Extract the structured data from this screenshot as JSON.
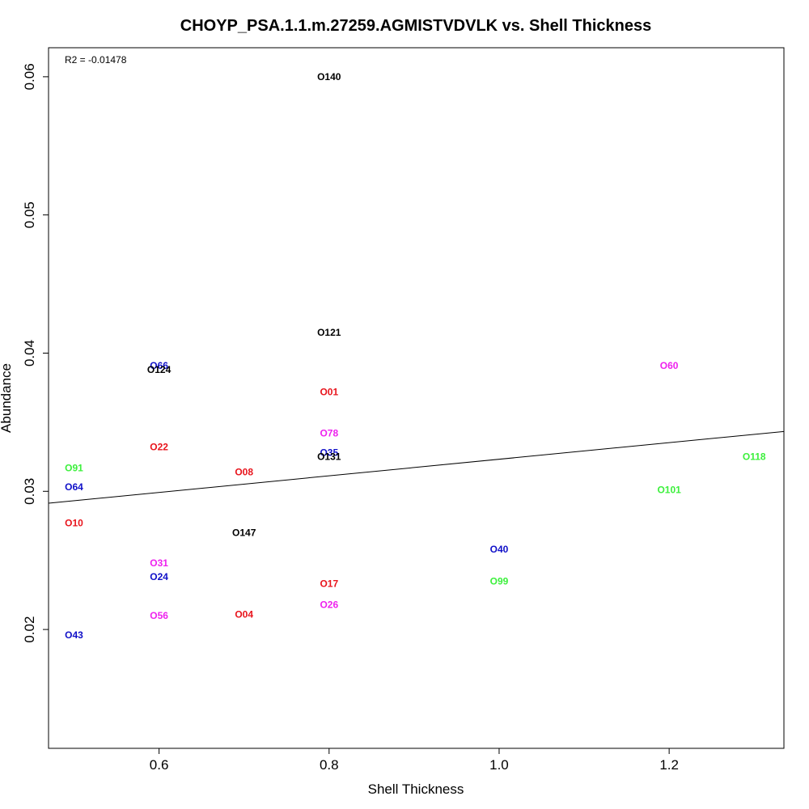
{
  "chart_data": {
    "type": "scatter",
    "title": "CHOYP_PSA.1.1.m.27259.AGMISTVDVLK vs. Shell Thickness",
    "xlabel": "Shell Thickness",
    "ylabel": "Abundance",
    "annotation": "R2 = -0.01478",
    "xlim": [
      0.47,
      1.335
    ],
    "ylim": [
      0.0114,
      0.0621
    ],
    "xticks": [
      "0.6",
      "0.8",
      "1.0",
      "1.2"
    ],
    "yticks": [
      "0.02",
      "0.03",
      "0.04",
      "0.05",
      "0.06"
    ],
    "grid": false,
    "legend": "none",
    "regression_line": {
      "slope": 0.006,
      "intercept": 0.02632
    },
    "colors": {
      "red": "#e8141c",
      "blue": "#1010c8",
      "green": "#3cf03c",
      "magenta": "#ee22ee",
      "black": "#000000"
    },
    "points": [
      {
        "label": "O140",
        "x": 0.8,
        "y": 0.06,
        "color": "black"
      },
      {
        "label": "O121",
        "x": 0.8,
        "y": 0.0415,
        "color": "black"
      },
      {
        "label": "O66",
        "x": 0.6,
        "y": 0.0391,
        "color": "blue"
      },
      {
        "label": "O124",
        "x": 0.6,
        "y": 0.0388,
        "color": "black"
      },
      {
        "label": "O60",
        "x": 1.2,
        "y": 0.0391,
        "color": "magenta"
      },
      {
        "label": "O01",
        "x": 0.8,
        "y": 0.0372,
        "color": "red"
      },
      {
        "label": "O78",
        "x": 0.8,
        "y": 0.0342,
        "color": "magenta"
      },
      {
        "label": "O22",
        "x": 0.6,
        "y": 0.0332,
        "color": "red"
      },
      {
        "label": "O35",
        "x": 0.8,
        "y": 0.0328,
        "color": "blue"
      },
      {
        "label": "O131",
        "x": 0.8,
        "y": 0.0325,
        "color": "black"
      },
      {
        "label": "O118",
        "x": 1.3,
        "y": 0.0325,
        "color": "green"
      },
      {
        "label": "O91",
        "x": 0.5,
        "y": 0.0317,
        "color": "green"
      },
      {
        "label": "O08",
        "x": 0.7,
        "y": 0.0314,
        "color": "red"
      },
      {
        "label": "O64",
        "x": 0.5,
        "y": 0.0303,
        "color": "blue"
      },
      {
        "label": "O101",
        "x": 1.2,
        "y": 0.0301,
        "color": "green"
      },
      {
        "label": "O10",
        "x": 0.5,
        "y": 0.0277,
        "color": "red"
      },
      {
        "label": "O147",
        "x": 0.7,
        "y": 0.027,
        "color": "black"
      },
      {
        "label": "O40",
        "x": 1.0,
        "y": 0.0258,
        "color": "blue"
      },
      {
        "label": "O31",
        "x": 0.6,
        "y": 0.0248,
        "color": "magenta"
      },
      {
        "label": "O24",
        "x": 0.6,
        "y": 0.0238,
        "color": "blue"
      },
      {
        "label": "O99",
        "x": 1.0,
        "y": 0.0235,
        "color": "green"
      },
      {
        "label": "O17",
        "x": 0.8,
        "y": 0.0233,
        "color": "red"
      },
      {
        "label": "O26",
        "x": 0.8,
        "y": 0.0218,
        "color": "magenta"
      },
      {
        "label": "O04",
        "x": 0.7,
        "y": 0.0211,
        "color": "red"
      },
      {
        "label": "O56",
        "x": 0.6,
        "y": 0.021,
        "color": "magenta"
      },
      {
        "label": "O43",
        "x": 0.5,
        "y": 0.0196,
        "color": "blue"
      }
    ]
  }
}
